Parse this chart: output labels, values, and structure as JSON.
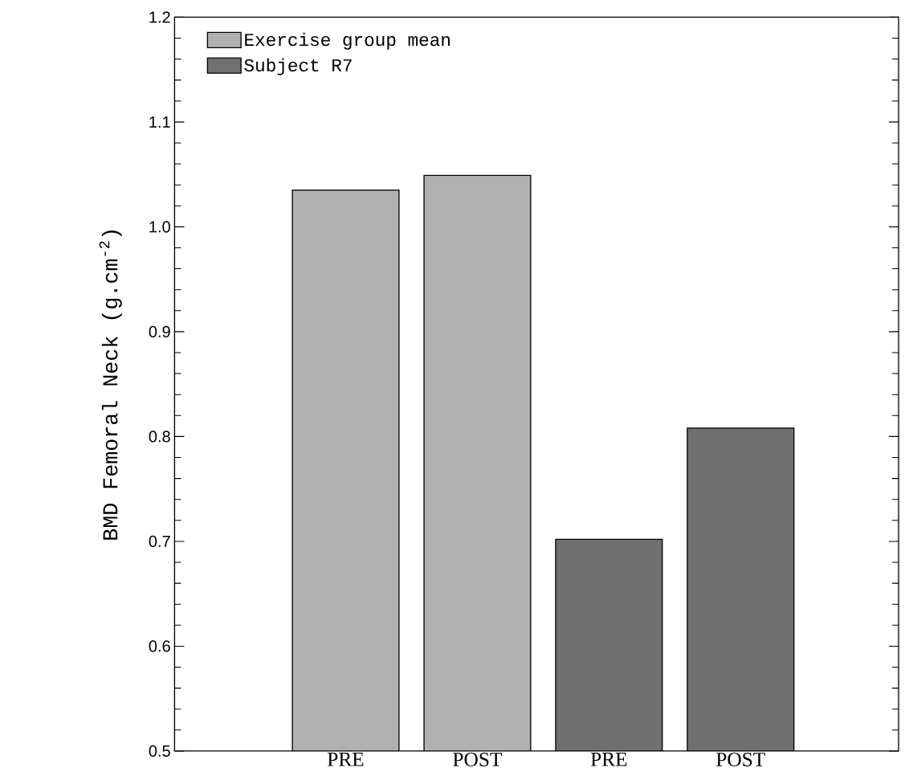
{
  "chart_data": {
    "type": "bar",
    "ylabel": "BMD Femoral Neck (g.cm$^{-2}$)",
    "categories": [
      "PRE",
      "POST",
      "PRE",
      "POST"
    ],
    "series": [
      {
        "name": "Exercise group mean",
        "color": "#b0b0b0",
        "values": [
          1.035,
          1.049,
          null,
          null
        ]
      },
      {
        "name": "Subject R7",
        "color": "#707070",
        "values": [
          null,
          null,
          0.702,
          0.808
        ]
      }
    ],
    "ylim": [
      0.5,
      1.2
    ],
    "yticks": [
      {
        "value": 0.5,
        "label": "0.5"
      },
      {
        "value": 0.6,
        "label": "0.6"
      },
      {
        "value": 0.7,
        "label": "0.7"
      },
      {
        "value": 0.8,
        "label": "0.8"
      },
      {
        "value": 0.9,
        "label": "0.9"
      },
      {
        "value": 1.0,
        "label": "1.0"
      },
      {
        "value": 1.1,
        "label": "1.1"
      },
      {
        "value": 1.2,
        "label": "1.2"
      }
    ],
    "grid": false,
    "legend": "top left"
  }
}
